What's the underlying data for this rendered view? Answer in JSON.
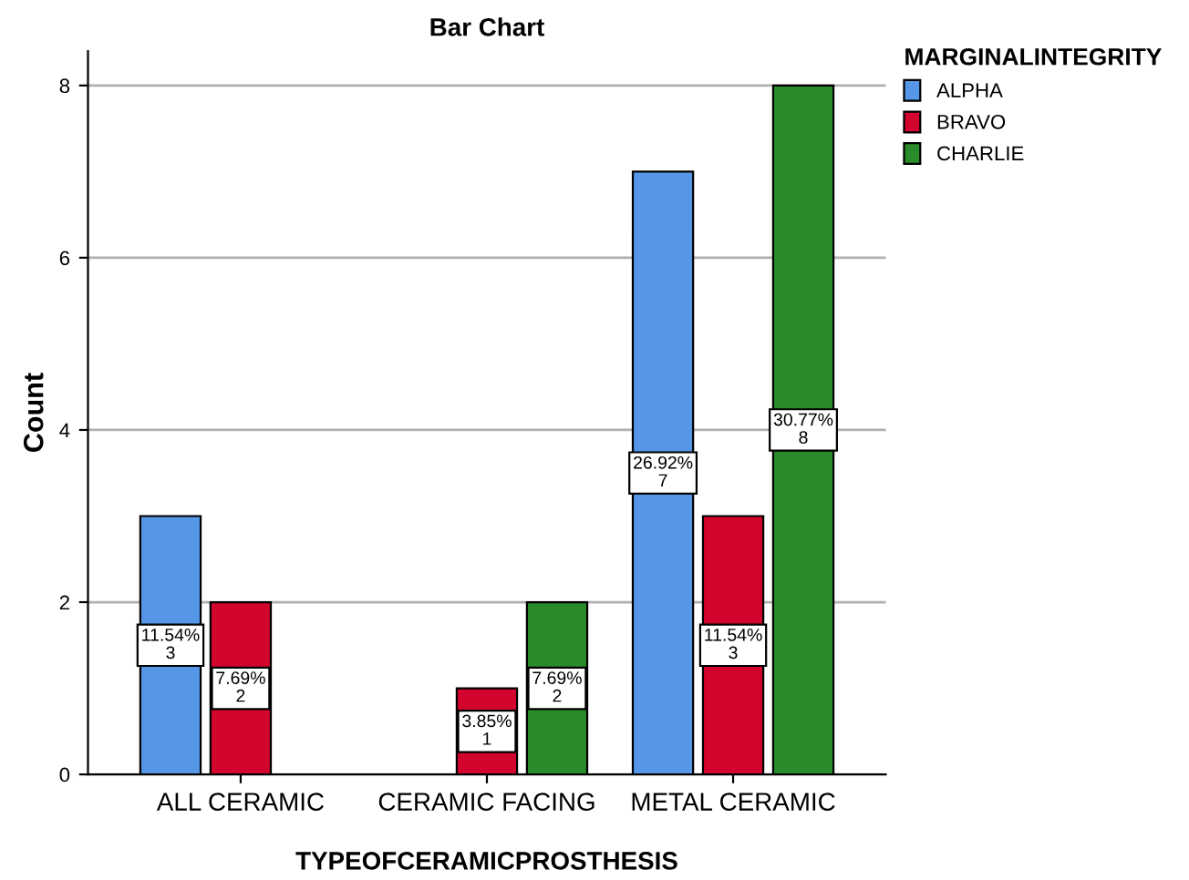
{
  "chart_data": {
    "type": "bar",
    "title": "Bar Chart",
    "xlabel": "TYPEOFCERAMICPROSTHESIS",
    "ylabel": "Count",
    "legend_title": "MARGINALINTEGRITY",
    "categories": [
      "ALL CERAMIC",
      "CERAMIC FACING",
      "METAL CERAMIC"
    ],
    "series": [
      {
        "name": "ALPHA",
        "color": "#5596e6",
        "values": [
          3,
          null,
          7
        ],
        "value_labels": [
          "11.54%\n3",
          null,
          "26.92%\n7"
        ]
      },
      {
        "name": "BRAVO",
        "color": "#d2042d",
        "values": [
          2,
          1,
          3
        ],
        "value_labels": [
          "7.69%\n2",
          "3.85%\n1",
          "11.54%\n3"
        ]
      },
      {
        "name": "CHARLIE",
        "color": "#2a8b2a",
        "values": [
          null,
          2,
          8
        ],
        "value_labels": [
          null,
          "7.69%\n2",
          "30.77%\n8"
        ]
      }
    ],
    "ylim": [
      0,
      8.4
    ],
    "yticks": [
      0,
      2,
      4,
      6,
      8
    ],
    "grid": "y",
    "legend": "top right"
  }
}
